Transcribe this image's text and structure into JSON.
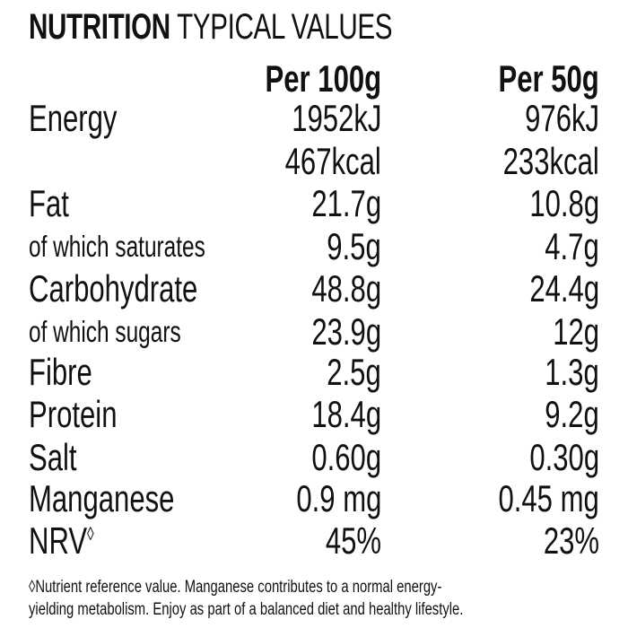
{
  "title": {
    "bold": "NUTRITION",
    "rest": "TYPICAL VALUES"
  },
  "columns": [
    "Per 100g",
    "Per 50g"
  ],
  "rows": [
    {
      "label": "Energy",
      "per100": "1952kJ",
      "per50": "976kJ",
      "small": false
    },
    {
      "label": "",
      "per100": "467kcal",
      "per50": "233kcal",
      "small": false
    },
    {
      "label": "Fat",
      "per100": "21.7g",
      "per50": "10.8g",
      "small": false
    },
    {
      "label": "of which saturates",
      "per100": "9.5g",
      "per50": "4.7g",
      "small": true
    },
    {
      "label": "Carbohydrate",
      "per100": "48.8g",
      "per50": "24.4g",
      "small": false
    },
    {
      "label": "of which sugars",
      "per100": "23.9g",
      "per50": "12g",
      "small": true
    },
    {
      "label": "Fibre",
      "per100": "2.5g",
      "per50": "1.3g",
      "small": false
    },
    {
      "label": "Protein",
      "per100": "18.4g",
      "per50": "9.2g",
      "small": false
    },
    {
      "label": "Salt",
      "per100": "0.60g",
      "per50": "0.30g",
      "small": false
    },
    {
      "label": "Manganese",
      "per100": "0.9 mg",
      "per50": "0.45 mg",
      "small": false
    },
    {
      "label": "NRV",
      "label_sup": "◊",
      "per100": "45%",
      "per50": "23%",
      "small": false
    }
  ],
  "footnote": {
    "line1": "◊Nutrient reference value. Manganese contributes to a normal energy-",
    "line2": "yielding metabolism. Enjoy as part of a balanced diet and healthy lifestyle."
  }
}
